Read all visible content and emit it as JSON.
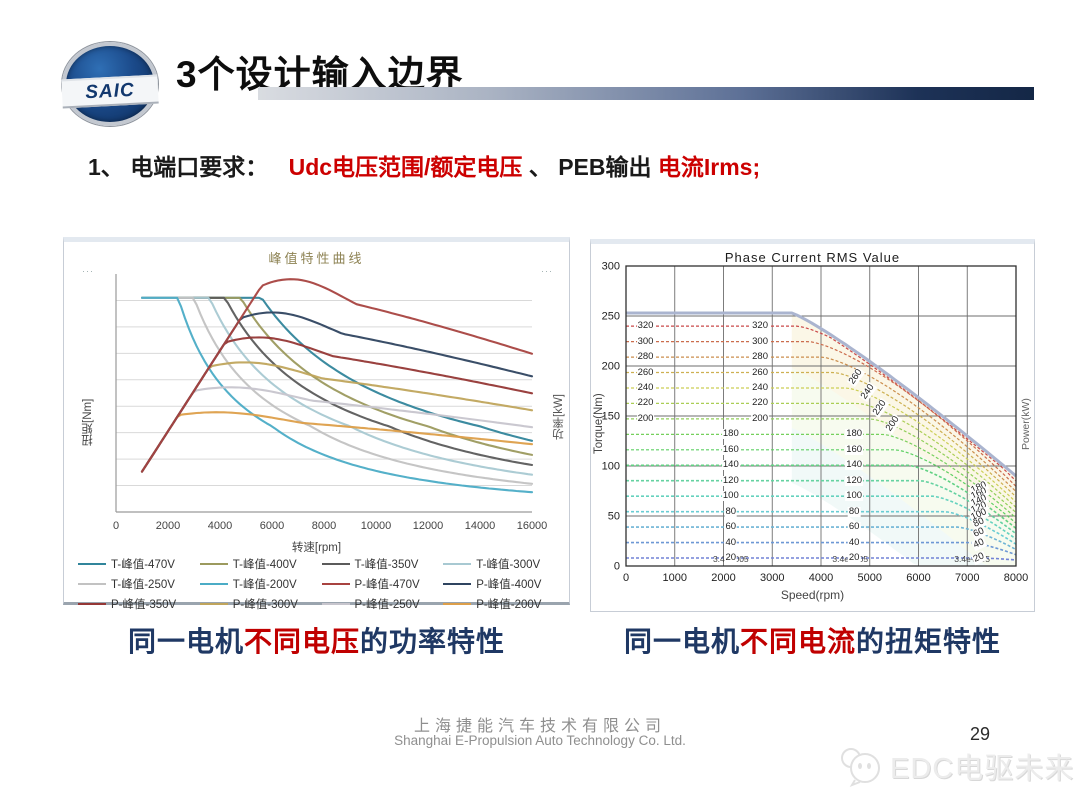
{
  "slide": {
    "logo_text": "SAIC",
    "title": "3个设计输入边界",
    "bullet": {
      "prefix": "1、",
      "label": "电端口要求：",
      "seg_red_1": "Udc电压范围/额定电压",
      "seg_black_1": "、",
      "seg_black_2": "PEB输出",
      "seg_red_2": "电流Irms;"
    },
    "captions": {
      "left": {
        "part1": "同一电机",
        "highlight": "不同电压",
        "part2": "的功率特性"
      },
      "right": {
        "part1": "同一电机",
        "highlight": "不同电流",
        "part2": "的扭矩特性"
      }
    },
    "footer": {
      "company_cn": "上海捷能汽车技术有限公司",
      "company_en": "Shanghai E-Propulsion Auto Technology Co. Ltd.",
      "page_number": "29",
      "watermark_text": "EDC电驱未来"
    },
    "colors": {
      "accent_navy": "#17375e",
      "highlight_red": "#c00000",
      "caption_blue": "#1f3864"
    }
  },
  "chart_data": [
    {
      "type": "line",
      "title": "峰值特性曲线",
      "xlabel": "转速[rpm]",
      "ylabel": "扭矩[Nm]",
      "y2label": "功率[kW]",
      "xlim": [
        0,
        16000
      ],
      "xticks": [
        0,
        2000,
        4000,
        6000,
        8000,
        10000,
        12000,
        14000,
        16000
      ],
      "y_tick_labels_visible": false,
      "grid": "horizontal",
      "corner_marks": [
        "···",
        "···"
      ],
      "description": "Peak torque (T) and peak power (P) curves of the same motor at DC-link voltages 470V to 200V; torque is flat up to a voltage-dependent base speed then falls in field weakening, power rises to a voltage-dependent peak then declines.",
      "series": [
        {
          "name": "T-峰值-470V",
          "kind": "torque",
          "voltage": 470,
          "base_speed_rpm": 5600,
          "color": "#31859b"
        },
        {
          "name": "T-峰值-400V",
          "kind": "torque",
          "voltage": 400,
          "base_speed_rpm": 4800,
          "color": "#9c9a5e"
        },
        {
          "name": "T-峰值-350V",
          "kind": "torque",
          "voltage": 350,
          "base_speed_rpm": 4200,
          "color": "#5b5b5b"
        },
        {
          "name": "T-峰值-300V",
          "kind": "torque",
          "voltage": 300,
          "base_speed_rpm": 3600,
          "color": "#a8c9d2"
        },
        {
          "name": "T-峰值-250V",
          "kind": "torque",
          "voltage": 250,
          "base_speed_rpm": 3000,
          "color": "#c2c2c2"
        },
        {
          "name": "T-峰值-200V",
          "kind": "torque",
          "voltage": 200,
          "base_speed_rpm": 2400,
          "color": "#4bacc6"
        },
        {
          "name": "P-峰值-470V",
          "kind": "power",
          "voltage": 470,
          "base_speed_rpm": 5600,
          "color": "#a84340"
        },
        {
          "name": "P-峰值-400V",
          "kind": "power",
          "voltage": 400,
          "base_speed_rpm": 4800,
          "color": "#2f4460"
        },
        {
          "name": "P-峰值-350V",
          "kind": "power",
          "voltage": 350,
          "base_speed_rpm": 4200,
          "color": "#953735"
        },
        {
          "name": "P-峰值-300V",
          "kind": "power",
          "voltage": 300,
          "base_speed_rpm": 3600,
          "color": "#c0a55c"
        },
        {
          "name": "P-峰值-250V",
          "kind": "power",
          "voltage": 250,
          "base_speed_rpm": 3000,
          "color": "#c7c5cd"
        },
        {
          "name": "P-峰值-200V",
          "kind": "power",
          "voltage": 200,
          "base_speed_rpm": 2400,
          "color": "#dd9f4a"
        }
      ]
    },
    {
      "type": "contour",
      "title": "Phase Current RMS Value",
      "xlabel": "Speed(rpm)",
      "ylabel": "Torque(Nm)",
      "y2label": "Power(kW)",
      "xlim": [
        0,
        8000
      ],
      "ylim": [
        0,
        300
      ],
      "xticks": [
        0,
        1000,
        2000,
        3000,
        4000,
        5000,
        6000,
        7000,
        8000
      ],
      "yticks": [
        0,
        50,
        100,
        150,
        200,
        250,
        300
      ],
      "contour_values_A": [
        320,
        300,
        280,
        260,
        240,
        220,
        200,
        180,
        160,
        140,
        120,
        100,
        80,
        60,
        40,
        20
      ],
      "envelope": {
        "flat_torque_nm": 253,
        "corner_speed_rpm": 3400,
        "torque_at_8000rpm": 90
      },
      "annotations": [
        {
          "text": "3.4e+005",
          "x": 2150,
          "y": 4
        },
        {
          "text": "3.4e+005",
          "x": 4600,
          "y": 4
        },
        {
          "text": "3.4e+005",
          "x": 7100,
          "y": 4
        }
      ],
      "description": "Constant phase-current RMS contours (A) of the same motor on the speed-torque plane; flat torque levels bend down along the field-weakening envelope."
    }
  ]
}
